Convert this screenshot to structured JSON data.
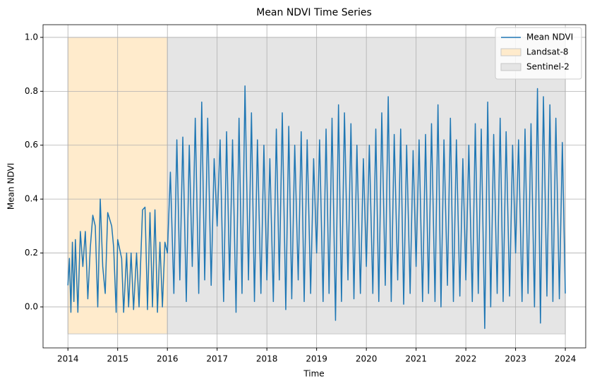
{
  "chart_data": {
    "type": "line",
    "title": "Mean NDVI Time Series",
    "x_label": "Time",
    "y_label": "Mean NDVI",
    "xlim": [
      2013.5,
      2024.41
    ],
    "ylim": [
      -0.152,
      1.047
    ],
    "xticks": [
      2014,
      2015,
      2016,
      2017,
      2018,
      2019,
      2020,
      2021,
      2022,
      2023,
      2024
    ],
    "yticks": [
      {
        "value": 0,
        "label": "0.0"
      },
      0.2,
      0.4,
      0.6,
      0.8,
      {
        "value": 1,
        "label": "1.0"
      }
    ],
    "grid": true,
    "legend": "upper right",
    "spans": [
      {
        "name": "Landsat-8",
        "color": "#ffebcc",
        "x": [
          2014,
          2016
        ],
        "y": [
          -0.1,
          1.0
        ]
      },
      {
        "name": "Sentinel-2",
        "color": "#e5e5e5",
        "x": [
          2016,
          2024
        ],
        "y": [
          -0.1,
          1.0
        ]
      }
    ],
    "series": [
      {
        "name": "Mean NDVI",
        "color": "#1f77b4",
        "x": [
          2014.0,
          2014.03,
          2014.06,
          2014.09,
          2014.12,
          2014.15,
          2014.2,
          2014.25,
          2014.3,
          2014.35,
          2014.4,
          2014.45,
          2014.5,
          2014.55,
          2014.6,
          2014.65,
          2014.7,
          2014.75,
          2014.8,
          2014.88,
          2014.92,
          2014.97,
          2015.0,
          2015.08,
          2015.12,
          2015.18,
          2015.22,
          2015.27,
          2015.32,
          2015.38,
          2015.43,
          2015.5,
          2015.55,
          2015.6,
          2015.65,
          2015.7,
          2015.75,
          2015.8,
          2015.85,
          2015.9,
          2015.95,
          2016.0,
          2016.06,
          2016.13,
          2016.19,
          2016.25,
          2016.31,
          2016.38,
          2016.44,
          2016.5,
          2016.56,
          2016.63,
          2016.69,
          2016.75,
          2016.81,
          2016.88,
          2016.94,
          2017.0,
          2017.06,
          2017.13,
          2017.19,
          2017.25,
          2017.31,
          2017.38,
          2017.44,
          2017.5,
          2017.56,
          2017.63,
          2017.69,
          2017.75,
          2017.81,
          2017.88,
          2017.94,
          2018.0,
          2018.06,
          2018.13,
          2018.19,
          2018.25,
          2018.31,
          2018.38,
          2018.44,
          2018.5,
          2018.56,
          2018.63,
          2018.69,
          2018.75,
          2018.81,
          2018.88,
          2018.94,
          2019.0,
          2019.06,
          2019.13,
          2019.19,
          2019.25,
          2019.31,
          2019.38,
          2019.44,
          2019.5,
          2019.56,
          2019.63,
          2019.69,
          2019.75,
          2019.81,
          2019.88,
          2019.94,
          2020.0,
          2020.06,
          2020.13,
          2020.19,
          2020.25,
          2020.31,
          2020.38,
          2020.44,
          2020.5,
          2020.56,
          2020.63,
          2020.69,
          2020.75,
          2020.81,
          2020.88,
          2020.94,
          2021.0,
          2021.06,
          2021.13,
          2021.19,
          2021.25,
          2021.31,
          2021.38,
          2021.44,
          2021.5,
          2021.56,
          2021.63,
          2021.69,
          2021.75,
          2021.81,
          2021.88,
          2021.94,
          2022.0,
          2022.06,
          2022.13,
          2022.19,
          2022.25,
          2022.31,
          2022.38,
          2022.44,
          2022.5,
          2022.56,
          2022.63,
          2022.69,
          2022.75,
          2022.81,
          2022.88,
          2022.94,
          2023.0,
          2023.06,
          2023.13,
          2023.19,
          2023.25,
          2023.31,
          2023.38,
          2023.44,
          2023.5,
          2023.56,
          2023.63,
          2023.69,
          2023.75,
          2023.81,
          2023.88,
          2023.94,
          2024.0
        ],
        "values": [
          0.08,
          0.18,
          -0.02,
          0.24,
          0.02,
          0.25,
          -0.02,
          0.28,
          0.15,
          0.28,
          0.03,
          0.22,
          0.34,
          0.3,
          0.0,
          0.4,
          0.15,
          0.05,
          0.35,
          0.3,
          0.22,
          -0.02,
          0.25,
          0.18,
          -0.02,
          0.2,
          0.0,
          0.2,
          -0.01,
          0.2,
          0.0,
          0.36,
          0.37,
          -0.01,
          0.35,
          0.0,
          0.36,
          -0.02,
          0.24,
          0.0,
          0.24,
          0.2,
          0.5,
          0.05,
          0.62,
          0.1,
          0.63,
          0.02,
          0.6,
          0.15,
          0.7,
          0.05,
          0.76,
          0.1,
          0.7,
          0.08,
          0.55,
          0.3,
          0.62,
          0.02,
          0.65,
          0.1,
          0.62,
          -0.02,
          0.7,
          0.05,
          0.82,
          0.1,
          0.72,
          0.02,
          0.62,
          0.05,
          0.6,
          0.1,
          0.55,
          0.02,
          0.66,
          0.1,
          0.72,
          -0.01,
          0.67,
          0.03,
          0.6,
          0.1,
          0.65,
          0.02,
          0.62,
          0.05,
          0.55,
          0.2,
          0.62,
          0.02,
          0.66,
          0.05,
          0.7,
          -0.05,
          0.75,
          0.02,
          0.72,
          0.1,
          0.68,
          0.03,
          0.6,
          0.05,
          0.55,
          0.15,
          0.6,
          0.05,
          0.66,
          0.02,
          0.72,
          0.08,
          0.78,
          0.02,
          0.64,
          0.1,
          0.66,
          0.01,
          0.6,
          0.05,
          0.58,
          0.15,
          0.62,
          0.02,
          0.64,
          0.05,
          0.68,
          0.02,
          0.75,
          0.0,
          0.62,
          0.08,
          0.7,
          0.02,
          0.62,
          0.04,
          0.55,
          0.1,
          0.6,
          0.02,
          0.68,
          0.05,
          0.66,
          -0.08,
          0.76,
          0.0,
          0.64,
          0.05,
          0.7,
          0.02,
          0.65,
          0.04,
          0.6,
          0.2,
          0.62,
          0.02,
          0.66,
          0.05,
          0.68,
          0.0,
          0.81,
          -0.06,
          0.78,
          0.04,
          0.75,
          0.02,
          0.7,
          0.03,
          0.61,
          0.05
        ]
      }
    ]
  }
}
